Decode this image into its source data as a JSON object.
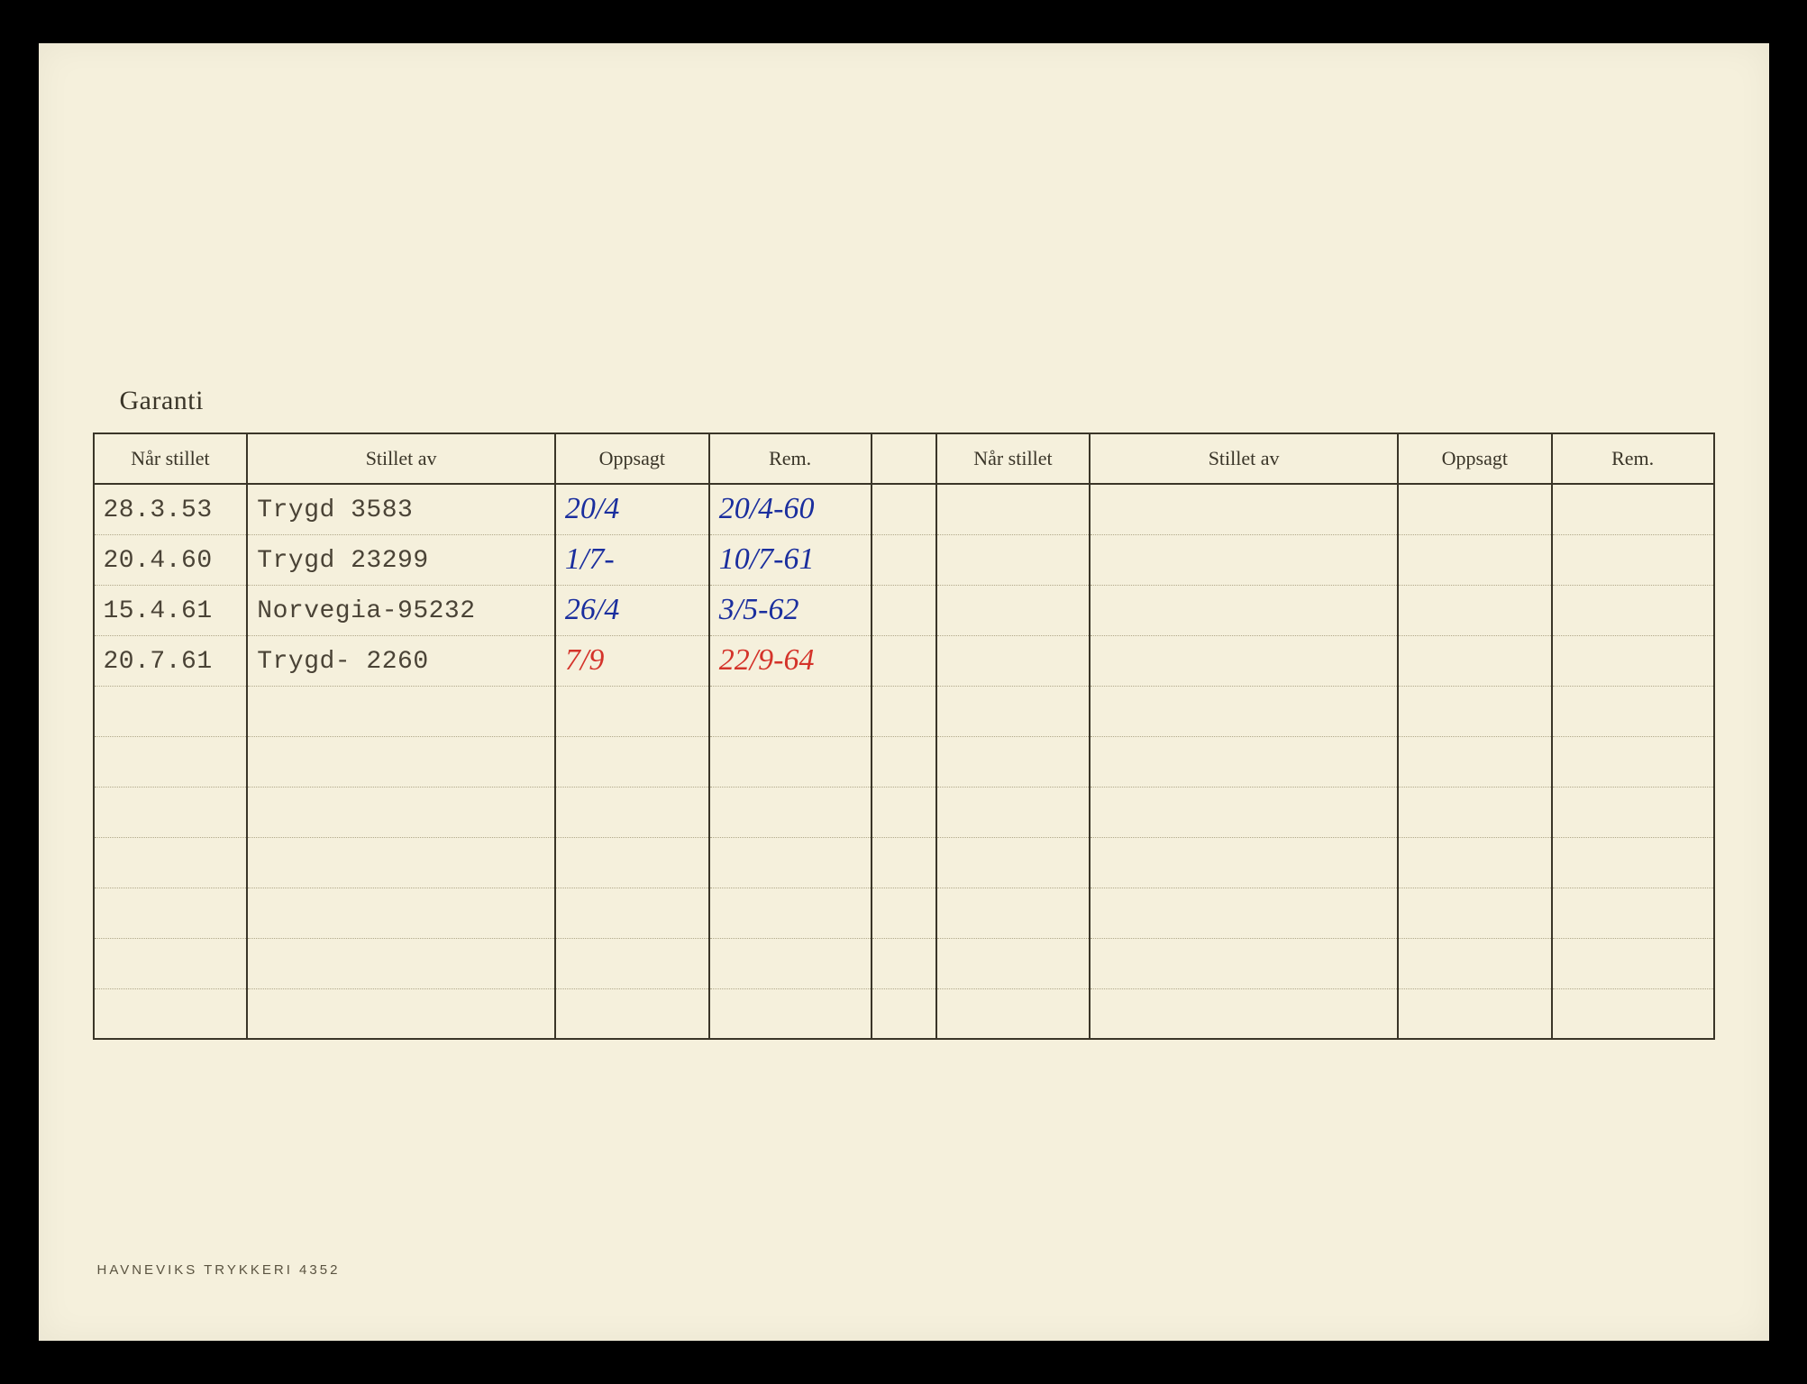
{
  "document": {
    "title": "Garanti",
    "imprint": "HAVNEVIKS TRYKKERI  4352",
    "background_color": "#f5f0dc",
    "ink_color": "#3a3528",
    "typed_color": "#4a4336",
    "hand_blue": "#1a2e9e",
    "hand_red": "#d4332a",
    "columns_left": {
      "c1": "Når stillet",
      "c2": "Stillet av",
      "c3": "Oppsagt",
      "c4": "Rem."
    },
    "columns_right": {
      "c1": "Når stillet",
      "c2": "Stillet av",
      "c3": "Oppsagt",
      "c4": "Rem."
    },
    "col_widths_pct": {
      "nar": 9.5,
      "stillet_av": 19,
      "oppsagt": 9.5,
      "rem": 10,
      "gap": 0.6
    },
    "num_body_rows": 11,
    "rows": [
      {
        "nar": "28.3.53",
        "stillet_av": "Trygd  3583",
        "opp": "20/4",
        "opp_style": "hand-blue",
        "rem": "20/4-60",
        "rem_style": "hand-blue"
      },
      {
        "nar": "20.4.60",
        "stillet_av": "Trygd 23299",
        "opp": "1/7-",
        "opp_style": "hand-blue",
        "rem": "10/7-61",
        "rem_style": "hand-blue"
      },
      {
        "nar": "15.4.61",
        "stillet_av": "Norvegia-95232",
        "opp": "26/4",
        "opp_style": "hand-blue",
        "rem": "3/5-62",
        "rem_style": "hand-blue"
      },
      {
        "nar": "20.7.61",
        "stillet_av": "Trygd- 2260",
        "opp": "7/9",
        "opp_style": "hand-red",
        "rem": "22/9-64",
        "rem_style": "hand-red"
      }
    ]
  }
}
